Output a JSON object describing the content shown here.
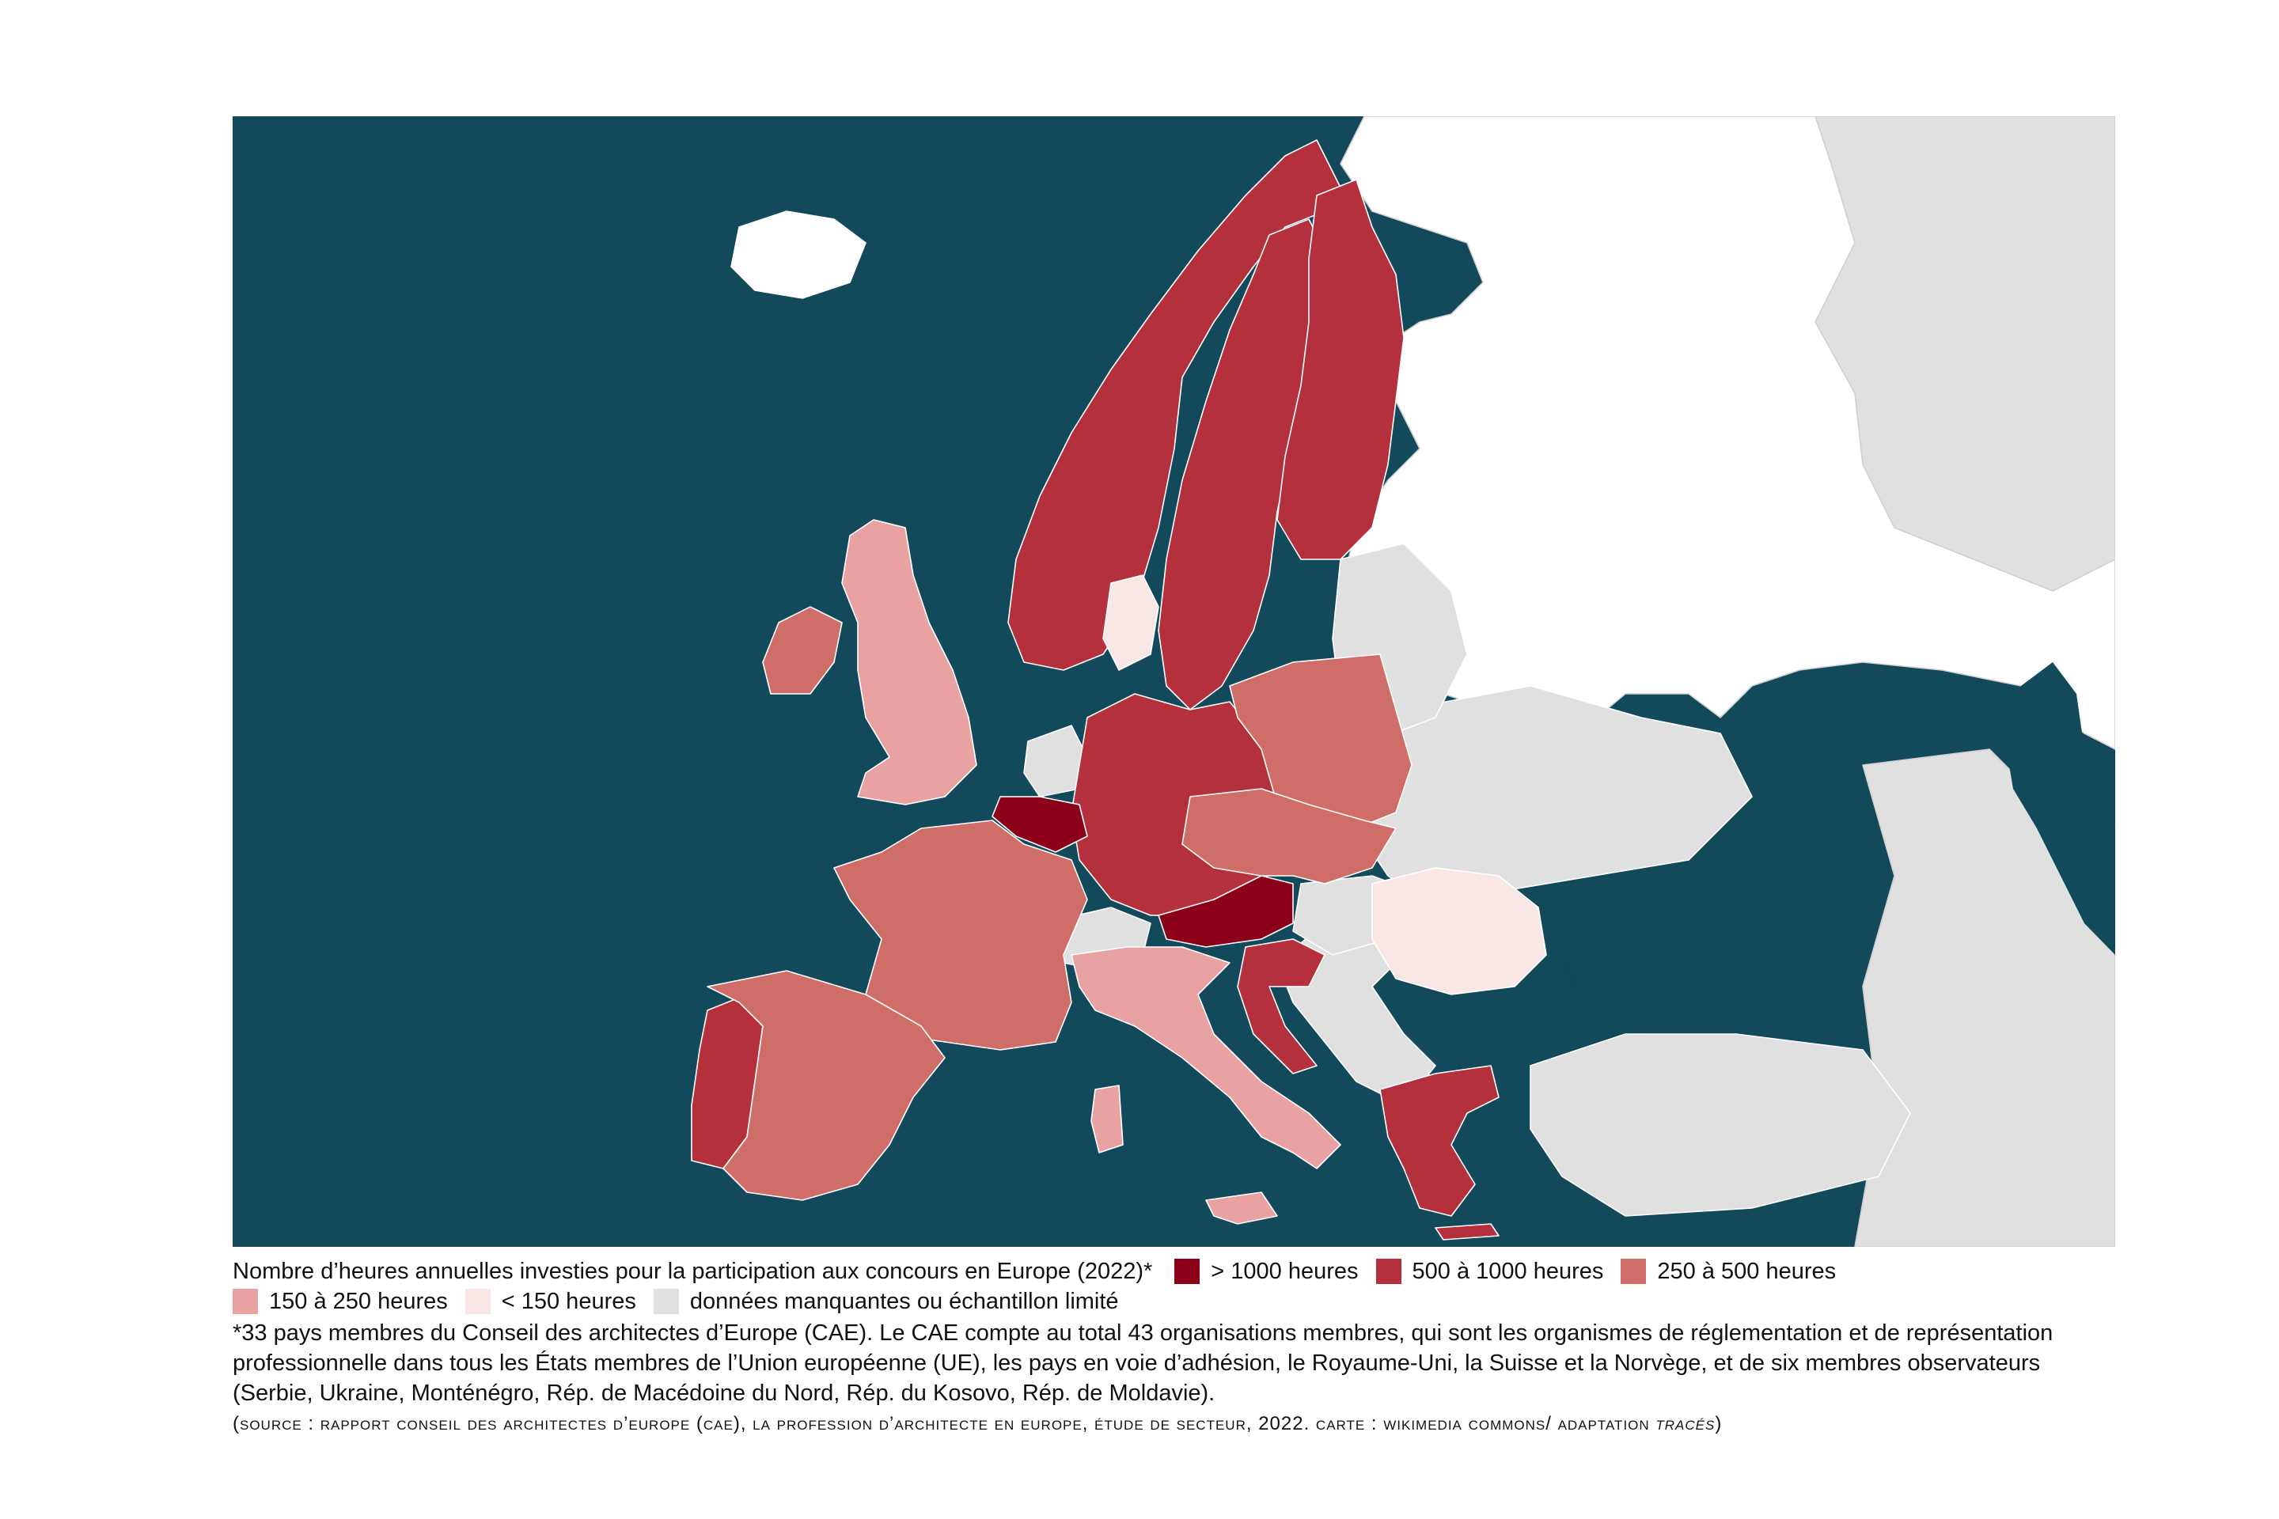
{
  "colors": {
    "sea": "#124a5c",
    "more_than_1000": "#8c0019",
    "h500_1000": "#b4303c",
    "h250_500": "#cf6e68",
    "h150_250": "#e8a2a2",
    "less_than_150": "#f9e7e5",
    "missing": "#e0e0e0",
    "outside": "#ffffff"
  },
  "map": {
    "categories": {
      "gt1000": [
        "Belgique",
        "Autriche"
      ],
      "500_1000": [
        "Norvège",
        "Suède",
        "Finlande",
        "Allemagne",
        "Croatie",
        "Grèce",
        "Portugal"
      ],
      "250_500": [
        "France",
        "Espagne",
        "Pologne",
        "Tchéquie",
        "Slovaquie",
        "Irlande"
      ],
      "150_250": [
        "Royaume-Uni",
        "Italie"
      ],
      "lt150": [
        "Danemark",
        "Roumanie"
      ],
      "missing": [
        "Pays-Bas",
        "Suisse",
        "Hongrie",
        "Slovénie",
        "Serbie",
        "Bulgarie",
        "Islande",
        "Pays baltes",
        "Biélorussie",
        "Ukraine",
        "Turquie"
      ]
    }
  },
  "caption": {
    "title": "Nombre d’heures annuelles investies pour la participation aux concours en Europe (2022)*",
    "legend": [
      {
        "label": "> 1000 heures",
        "color": "#8c0019"
      },
      {
        "label": "500 à 1000 heures",
        "color": "#b4303c"
      },
      {
        "label": "250 à 500 heures",
        "color": "#cf6e68"
      },
      {
        "label": "150 à 250 heures",
        "color": "#e8a2a2"
      },
      {
        "label": "< 150 heures",
        "color": "#f9e7e5"
      },
      {
        "label": "données manquantes ou échantillon limité",
        "color": "#e0e0e0"
      }
    ],
    "footnote": "*33 pays membres du Conseil des architectes d’Europe (CAE). Le CAE compte au total 43 organisations membres, qui sont les organismes de réglementation et de représentation professionnelle dans tous les États membres de l’Union européenne (UE), les pays en voie d’adhésion, le Royaume-Uni, la Suisse et la Norvège, et de six membres observateurs (Serbie, Ukraine, Monténégro, Rép. de Macédoine du Nord, Rép. du Kosovo, Rép. de Moldavie).",
    "source_main": "(Source : rapport Conseil des architectes d’Europe (CAE), La profession d’architecte en Europe, étude de secteur, 2022. Carte : Wikimedia Commons/ adaptation ",
    "source_italic": "Tracés",
    "source_end": ")"
  }
}
